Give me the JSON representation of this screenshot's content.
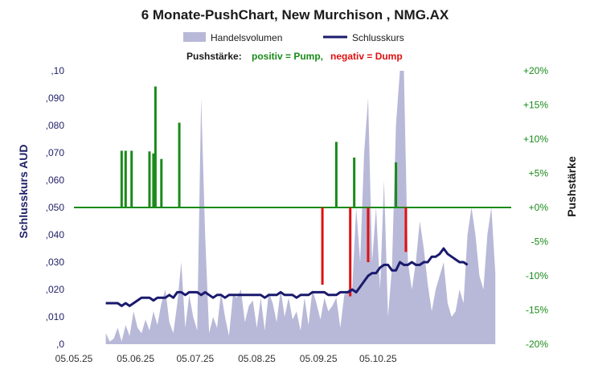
{
  "chart_data": {
    "type": "line",
    "title": "6 Monate-PushChart,  New Murchison , NMG.AX",
    "legend": {
      "volume_label": "Handelsvolumen",
      "close_label": "Schlusskurs",
      "placement": "top"
    },
    "subtitle": {
      "prefix": "Pushstärke:",
      "positive": "positiv = Pump,",
      "negative": "negativ = Dump"
    },
    "ylabel_left": "Schlusskurs AUD",
    "ylabel_right": "Pushstärke",
    "ylim_left": [
      0,
      0.1
    ],
    "ylim_right": [
      -20,
      20
    ],
    "x_ticks": [
      "05.05.25",
      "05.06.25",
      "05.07.25",
      "05.08.25",
      "05.09.25",
      "05.10.25"
    ],
    "y_left_ticks": [
      ",0",
      ",010",
      ",020",
      ",030",
      ",040",
      ",050",
      ",060",
      ",070",
      ",080",
      ",090",
      ",10"
    ],
    "y_right_ticks": [
      "-20%",
      "-15%",
      "-10%",
      "-5%",
      "+0%",
      "+5%",
      "+10%",
      "+15%",
      "+20%"
    ],
    "colors": {
      "close": "#1a1a6e",
      "volume": "#b8b8d8",
      "pump": "#1a8a1a",
      "dump": "#e01010",
      "zero_line": "#1a8a1a"
    },
    "close_series": {
      "x_days": [
        16,
        19,
        22,
        24,
        26,
        28,
        30,
        32,
        34,
        36,
        38,
        40,
        42,
        44,
        46,
        48,
        50,
        52,
        54,
        56,
        58,
        60,
        62,
        64,
        66,
        68,
        70,
        72,
        74,
        76,
        78,
        80,
        82,
        84,
        86,
        88,
        90,
        92,
        94,
        96,
        98,
        100,
        102,
        104,
        106,
        108,
        110,
        112,
        114,
        116,
        118,
        120,
        122,
        124,
        126,
        128,
        130,
        132,
        134,
        136,
        138,
        140,
        142,
        144,
        146,
        148,
        150,
        152,
        154,
        156,
        158,
        160,
        162,
        164,
        166,
        168,
        170,
        172,
        174,
        176,
        178,
        180,
        182,
        184,
        186,
        188,
        190,
        192,
        194,
        196,
        198
      ],
      "values": [
        0.015,
        0.015,
        0.015,
        0.014,
        0.015,
        0.014,
        0.015,
        0.016,
        0.017,
        0.017,
        0.017,
        0.016,
        0.017,
        0.017,
        0.017,
        0.018,
        0.017,
        0.019,
        0.019,
        0.018,
        0.019,
        0.019,
        0.019,
        0.018,
        0.019,
        0.018,
        0.017,
        0.018,
        0.018,
        0.017,
        0.018,
        0.018,
        0.018,
        0.018,
        0.018,
        0.018,
        0.018,
        0.018,
        0.018,
        0.017,
        0.018,
        0.018,
        0.018,
        0.019,
        0.018,
        0.018,
        0.018,
        0.017,
        0.018,
        0.018,
        0.018,
        0.019,
        0.019,
        0.019,
        0.019,
        0.018,
        0.018,
        0.018,
        0.019,
        0.019,
        0.019,
        0.02,
        0.019,
        0.021,
        0.023,
        0.025,
        0.026,
        0.026,
        0.028,
        0.029,
        0.029,
        0.027,
        0.027,
        0.03,
        0.029,
        0.029,
        0.03,
        0.029,
        0.029,
        0.03,
        0.03,
        0.032,
        0.032,
        0.033,
        0.035,
        0.033,
        0.032,
        0.031,
        0.03,
        0.03,
        0.029
      ]
    },
    "volume_series": {
      "x_days": [
        16,
        18,
        20,
        22,
        24,
        26,
        28,
        30,
        32,
        34,
        36,
        38,
        40,
        42,
        44,
        46,
        48,
        50,
        52,
        54,
        56,
        58,
        60,
        62,
        64,
        66,
        68,
        70,
        72,
        74,
        76,
        78,
        80,
        82,
        84,
        86,
        88,
        90,
        92,
        94,
        96,
        98,
        100,
        102,
        104,
        106,
        108,
        110,
        112,
        114,
        116,
        118,
        120,
        122,
        124,
        126,
        128,
        130,
        132,
        134,
        136,
        138,
        140,
        142,
        144,
        146,
        148,
        150,
        152,
        154,
        156,
        158,
        160,
        162,
        164,
        166,
        168,
        170,
        172,
        174,
        176,
        178,
        180,
        182,
        184,
        186,
        188,
        190,
        192,
        194,
        196,
        198,
        200,
        202,
        204,
        206,
        208,
        210,
        212
      ],
      "values": [
        0.004,
        0.001,
        0.002,
        0.006,
        0.001,
        0.007,
        0.003,
        0.012,
        0.006,
        0.004,
        0.009,
        0.005,
        0.012,
        0.007,
        0.015,
        0.02,
        0.008,
        0.004,
        0.015,
        0.03,
        0.006,
        0.018,
        0.01,
        0.005,
        0.09,
        0.04,
        0.004,
        0.01,
        0.006,
        0.019,
        0.01,
        0.003,
        0.018,
        0.017,
        0.02,
        0.008,
        0.014,
        0.016,
        0.006,
        0.017,
        0.005,
        0.019,
        0.015,
        0.008,
        0.02,
        0.01,
        0.017,
        0.009,
        0.012,
        0.005,
        0.017,
        0.007,
        0.02,
        0.015,
        0.009,
        0.017,
        0.012,
        0.014,
        0.017,
        0.006,
        0.018,
        0.02,
        0.02,
        0.05,
        0.03,
        0.07,
        0.09,
        0.03,
        0.05,
        0.02,
        0.06,
        0.01,
        0.028,
        0.08,
        0.1,
        0.1,
        0.03,
        0.02,
        0.03,
        0.045,
        0.035,
        0.022,
        0.012,
        0.02,
        0.025,
        0.03,
        0.015,
        0.01,
        0.012,
        0.02,
        0.015,
        0.04,
        0.05,
        0.04,
        0.025,
        0.02,
        0.04,
        0.05,
        0.026
      ]
    },
    "push_series": {
      "x_days": [
        24,
        26,
        29,
        38,
        40,
        41,
        44,
        53,
        125,
        132,
        139,
        141,
        148,
        162,
        167
      ],
      "values": [
        8.3,
        8.3,
        8.3,
        8.2,
        7.9,
        17.7,
        7.1,
        12.4,
        -11.3,
        9.6,
        -13,
        7.3,
        -8,
        6.6,
        -6.5
      ],
      "comment_omit": ""
    }
  }
}
